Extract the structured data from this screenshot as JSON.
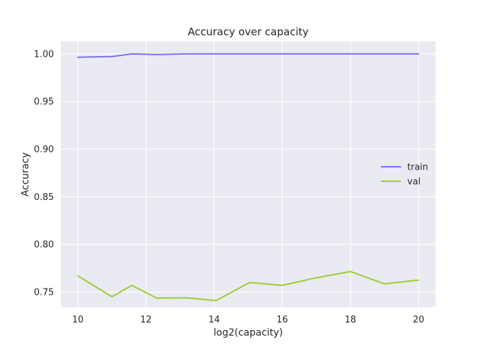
{
  "chart_data": {
    "type": "line",
    "title": "Accuracy over capacity",
    "xlabel": "log2(capacity)",
    "ylabel": "Accuracy",
    "xlim": [
      9.5,
      20.5
    ],
    "ylim": [
      0.734,
      1.013
    ],
    "grid": true,
    "legend_position": "center-right",
    "x_ticks": [
      10,
      12,
      14,
      16,
      18,
      20
    ],
    "y_ticks": [
      0.75,
      0.8,
      0.85,
      0.9,
      0.95,
      1.0
    ],
    "x": [
      10,
      11,
      11.58,
      12.32,
      13.17,
      14.06,
      15.04,
      16,
      17,
      18,
      19,
      20
    ],
    "series": [
      {
        "name": "train",
        "color": "#7b6ff0",
        "values": [
          0.9965,
          0.9972,
          1.0,
          0.9993,
          1.0,
          1.0,
          1.0,
          1.0,
          1.0,
          1.0,
          1.0,
          1.0
        ]
      },
      {
        "name": "val",
        "color": "#9acd32",
        "values": [
          0.767,
          0.745,
          0.757,
          0.7435,
          0.744,
          0.741,
          0.76,
          0.757,
          0.765,
          0.7715,
          0.7585,
          0.7625
        ]
      }
    ]
  }
}
